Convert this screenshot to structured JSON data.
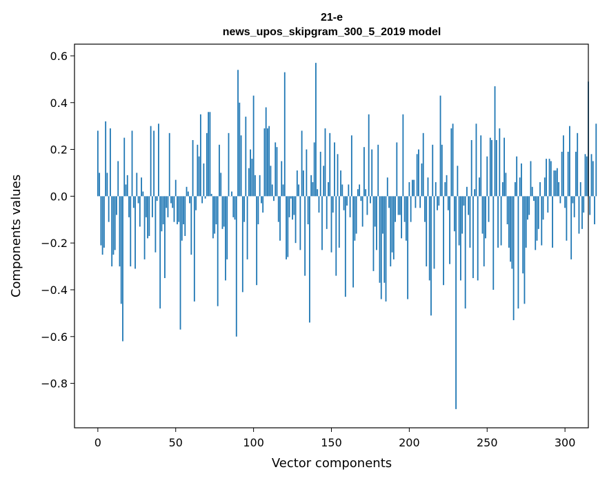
{
  "chart_data": {
    "type": "bar",
    "title": "21-e",
    "subtitle": "news_upos_skipgram_300_5_2019 model",
    "xlabel": "Vector components",
    "ylabel": "Components values",
    "xlim": [
      -15,
      315
    ],
    "ylim": [
      -0.99,
      0.65
    ],
    "xticks": [
      0,
      50,
      100,
      150,
      200,
      250,
      300
    ],
    "yticks": [
      -0.8,
      -0.6,
      -0.4,
      -0.2,
      0.0,
      0.2,
      0.4,
      0.6
    ],
    "xtick_labels": [
      "0",
      "50",
      "100",
      "150",
      "200",
      "250",
      "300"
    ],
    "ytick_labels": [
      "−0.8",
      "−0.6",
      "−0.4",
      "−0.2",
      "0.0",
      "0.2",
      "0.4",
      "0.6"
    ],
    "bar_color": "#1f77b4",
    "grid": false,
    "values": [
      0.28,
      0.1,
      -0.21,
      -0.25,
      -0.22,
      0.32,
      0.1,
      -0.11,
      0.29,
      -0.3,
      -0.25,
      -0.23,
      -0.08,
      0.15,
      -0.3,
      -0.46,
      -0.62,
      0.25,
      0.05,
      0.09,
      -0.09,
      -0.3,
      0.28,
      -0.05,
      -0.31,
      0.1,
      -0.03,
      -0.13,
      0.08,
      0.02,
      -0.27,
      -0.09,
      -0.18,
      -0.17,
      0.3,
      -0.09,
      0.28,
      -0.24,
      -0.02,
      0.31,
      -0.48,
      -0.15,
      -0.12,
      -0.35,
      -0.05,
      -0.09,
      0.27,
      -0.03,
      -0.05,
      -0.11,
      0.07,
      -0.12,
      -0.11,
      -0.57,
      -0.19,
      -0.12,
      -0.17,
      0.04,
      0.02,
      -0.03,
      -0.25,
      0.24,
      -0.45,
      -0.06,
      0.22,
      0.17,
      0.35,
      -0.03,
      0.14,
      -0.01,
      0.27,
      0.36,
      0.36,
      0.01,
      -0.18,
      -0.16,
      -0.12,
      -0.47,
      0.22,
      0.1,
      -0.14,
      -0.13,
      -0.36,
      -0.27,
      0.27,
      0.0,
      0.02,
      -0.09,
      -0.1,
      -0.6,
      0.54,
      0.4,
      0.26,
      -0.41,
      -0.11,
      0.34,
      -0.27,
      0.12,
      0.2,
      0.16,
      0.43,
      0.09,
      -0.38,
      -0.12,
      0.09,
      -0.03,
      -0.07,
      0.29,
      0.38,
      0.29,
      0.3,
      0.13,
      0.05,
      -0.02,
      0.23,
      0.21,
      -0.11,
      -0.19,
      0.15,
      0.05,
      0.53,
      -0.27,
      -0.26,
      -0.09,
      -0.01,
      -0.1,
      -0.08,
      -0.2,
      0.11,
      0.05,
      -0.23,
      0.28,
      0.11,
      -0.34,
      0.2,
      -0.12,
      -0.54,
      0.09,
      0.06,
      0.23,
      0.57,
      0.03,
      -0.07,
      0.19,
      -0.23,
      0.13,
      0.29,
      -0.14,
      0.06,
      0.27,
      -0.24,
      -0.07,
      0.23,
      -0.34,
      0.18,
      -0.22,
      0.11,
      0.05,
      -0.06,
      -0.43,
      -0.04,
      0.05,
      -0.09,
      0.26,
      -0.39,
      -0.19,
      -0.16,
      0.03,
      0.05,
      -0.02,
      -0.13,
      0.21,
      0.03,
      -0.08,
      0.35,
      -0.03,
      0.2,
      -0.32,
      -0.13,
      -0.23,
      0.22,
      -0.37,
      -0.44,
      -0.16,
      -0.37,
      -0.45,
      0.08,
      -0.05,
      -0.3,
      -0.24,
      -0.27,
      -0.11,
      0.23,
      -0.08,
      -0.08,
      -0.18,
      0.35,
      -0.11,
      -0.19,
      -0.44,
      0.06,
      -0.11,
      0.07,
      0.07,
      -0.05,
      0.18,
      0.2,
      -0.05,
      0.14,
      0.27,
      -0.11,
      -0.3,
      0.08,
      -0.36,
      -0.51,
      0.22,
      -0.31,
      0.06,
      -0.06,
      -0.04,
      0.43,
      0.22,
      -0.38,
      0.06,
      0.09,
      -0.06,
      -0.29,
      0.29,
      0.31,
      -0.15,
      -0.91,
      0.13,
      -0.21,
      -0.36,
      -0.16,
      -0.04,
      -0.48,
      0.04,
      -0.08,
      -0.22,
      0.24,
      -0.35,
      0.03,
      0.31,
      -0.36,
      0.08,
      0.26,
      -0.16,
      -0.3,
      -0.18,
      0.17,
      -0.11,
      0.25,
      0.24,
      -0.4,
      0.47,
      0.24,
      -0.22,
      0.29,
      -0.21,
      0.06,
      0.25,
      0.1,
      -0.12,
      -0.22,
      -0.28,
      -0.31,
      -0.53,
      0.06,
      0.17,
      -0.48,
      0.08,
      0.14,
      -0.33,
      -0.46,
      -0.22,
      -0.1,
      -0.08,
      0.15,
      0.04,
      -0.02,
      -0.23,
      -0.19,
      -0.14,
      0.06,
      -0.21,
      -0.1,
      0.08,
      0.16,
      -0.07,
      0.16,
      0.15,
      -0.22,
      0.11,
      0.11,
      0.12,
      0.06,
      -0.03,
      0.19,
      0.26,
      -0.05,
      -0.19,
      0.19,
      0.3,
      -0.27,
      -0.03,
      -0.09,
      0.19,
      0.27,
      -0.16,
      0.06,
      -0.14,
      -0.07,
      0.18,
      0.17,
      0.49,
      -0.08,
      0.18,
      0.15,
      -0.12,
      0.31
    ]
  }
}
